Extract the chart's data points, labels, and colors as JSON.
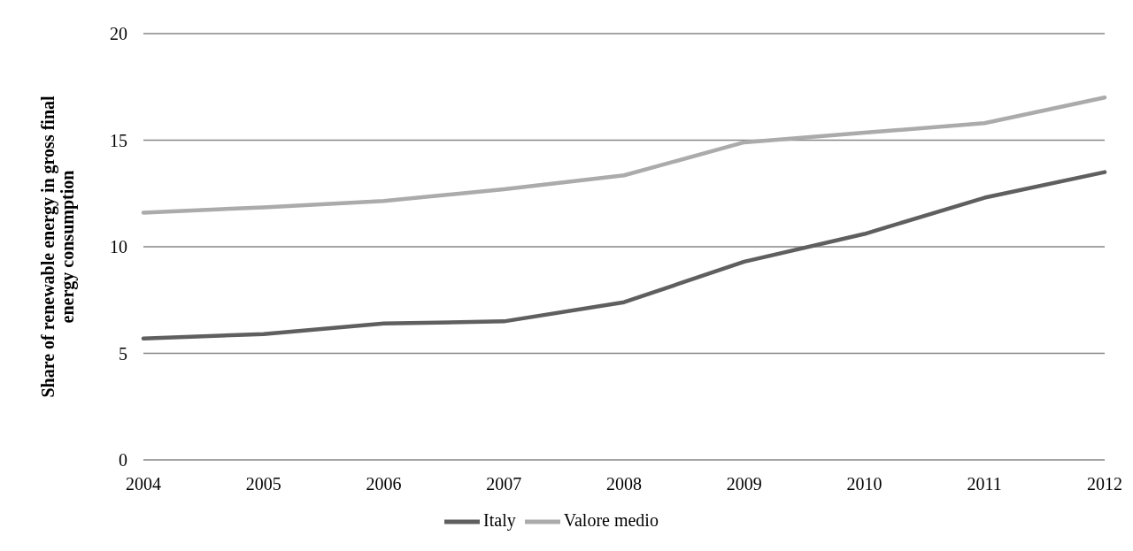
{
  "chart_data": {
    "type": "line",
    "ylabel": "Share of renewable energy in gross final energy consumption",
    "categories": [
      "2004",
      "2005",
      "2006",
      "2007",
      "2008",
      "2009",
      "2010",
      "2011",
      "2012"
    ],
    "series": [
      {
        "name": "Italy",
        "color": "#5f5f5f",
        "values": [
          5.7,
          5.9,
          6.4,
          6.5,
          7.4,
          9.3,
          10.6,
          12.3,
          13.5
        ]
      },
      {
        "name": "Valore medio",
        "color": "#ababab",
        "values": [
          11.6,
          11.85,
          12.15,
          12.7,
          13.35,
          14.9,
          15.35,
          15.8,
          17.0
        ]
      }
    ],
    "ylim": [
      0,
      20
    ],
    "yticks": [
      0,
      5,
      10,
      15,
      20
    ],
    "grid": "y",
    "legend": "bottom",
    "marker": "none",
    "line_style": "solid"
  }
}
